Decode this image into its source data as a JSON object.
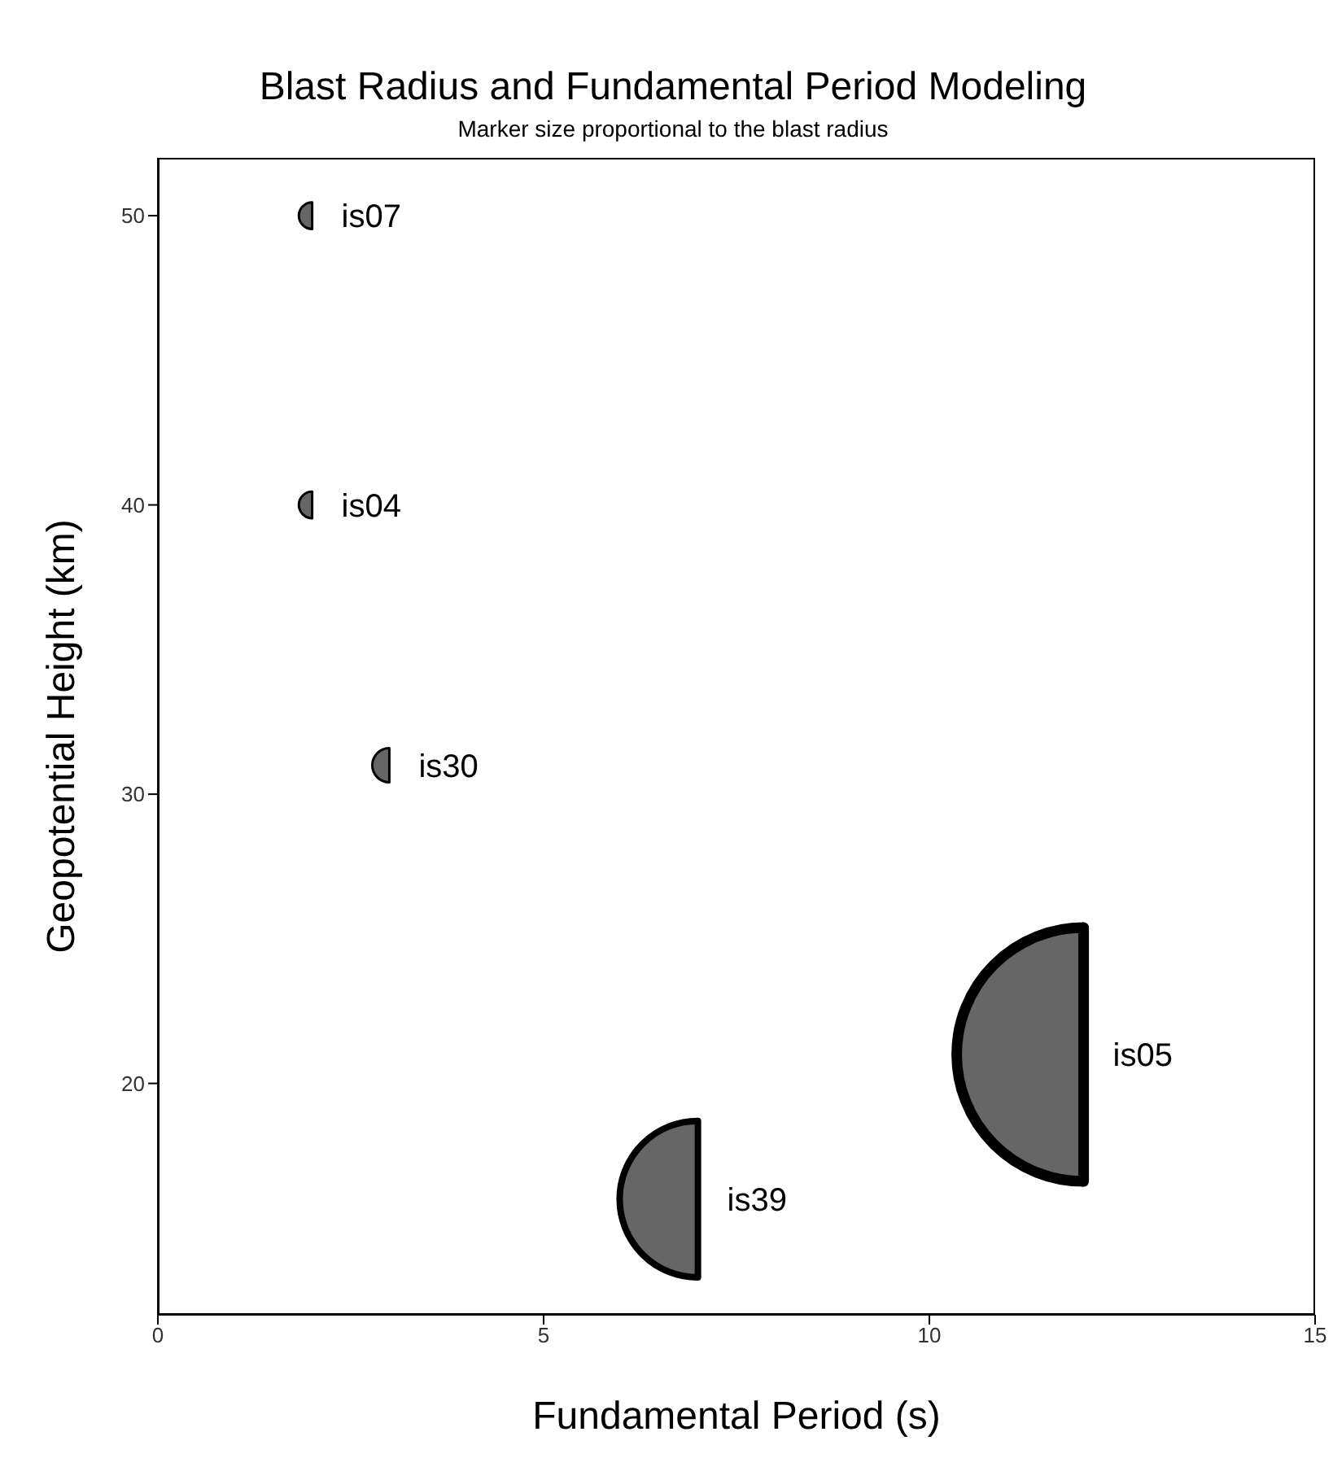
{
  "chart_data": {
    "type": "bubble",
    "title": "Blast Radius and Fundamental Period Modeling",
    "subtitle": "Marker size proportional to the blast radius",
    "xlabel": "Fundamental Period (s)",
    "ylabel": "Geopotential Height (km)",
    "x": [
      2,
      2,
      3,
      7,
      12
    ],
    "series": [
      {
        "color": "#666666",
        "values": [
          50,
          40,
          31,
          16,
          21
        ],
        "sizes": [
          0.011,
          0.011,
          0.018,
          0.38,
          1
        ]
      }
    ],
    "xlim": [
      0,
      15
    ],
    "xticks": [
      0,
      5,
      10,
      15
    ],
    "ylim": [
      12,
      52
    ],
    "yticks": [
      20,
      30,
      40,
      50
    ],
    "grid": false,
    "legend": false,
    "annotations": [
      {
        "text": "is07",
        "x": 2,
        "y": 50
      },
      {
        "text": "is04",
        "x": 2,
        "y": 40
      },
      {
        "text": "is30",
        "x": 3,
        "y": 31
      },
      {
        "text": "is39",
        "x": 7,
        "y": 16
      },
      {
        "text": "is05",
        "x": 12,
        "y": 21
      }
    ]
  }
}
